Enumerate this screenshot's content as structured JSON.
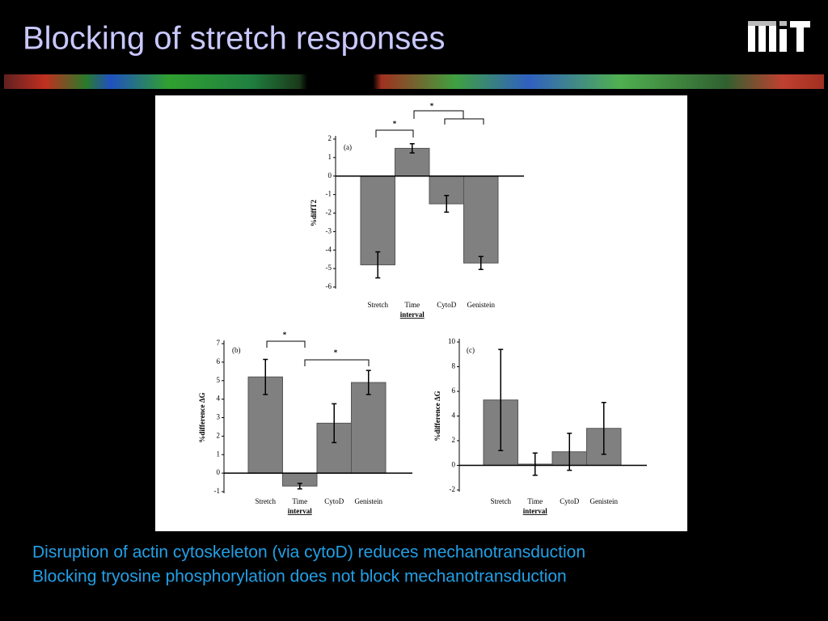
{
  "title": "Blocking of stretch responses",
  "lines": [
    "Disruption of actin cytoskeleton (via cytoD) reduces mechanotransduction",
    "Blocking tryosine phosphorylation does not block mechanotransduction"
  ],
  "chart_data": [
    {
      "type": "bar",
      "panel": "(a)",
      "ylabel": "%diffT2",
      "xlabel": "interval",
      "categories": [
        "Stretch",
        "Time",
        "CytoD",
        "Genistein"
      ],
      "values": [
        -4.8,
        1.5,
        -1.5,
        -4.7
      ],
      "errors": [
        0.7,
        0.25,
        0.45,
        0.35
      ],
      "color": "#808080",
      "ylim": [
        -6,
        2
      ],
      "yticks": [
        2,
        1,
        0,
        -1,
        -2,
        -3,
        -4,
        -5,
        -6
      ],
      "grid": false,
      "annotations": [
        "*",
        "*"
      ]
    },
    {
      "type": "bar",
      "panel": "(b)",
      "ylabel": "%difference ΔG",
      "xlabel": "interval",
      "categories": [
        "Stretch",
        "Time",
        "CytoD",
        "Genistein"
      ],
      "values": [
        5.2,
        -0.7,
        2.7,
        4.9
      ],
      "errors": [
        0.95,
        0.15,
        1.05,
        0.65
      ],
      "color": "#808080",
      "ylim": [
        -1,
        7
      ],
      "yticks": [
        7,
        6,
        5,
        4,
        3,
        2,
        1,
        0,
        -1
      ],
      "grid": false,
      "annotations": [
        "*",
        "*"
      ]
    },
    {
      "type": "bar",
      "panel": "(c)",
      "ylabel": "%difference ΔG",
      "xlabel": "interval",
      "categories": [
        "Stretch",
        "Time",
        "CytoD",
        "Genistein"
      ],
      "values": [
        5.3,
        0.1,
        1.1,
        3.0
      ],
      "errors": [
        4.1,
        0.9,
        1.5,
        2.1
      ],
      "color": "#808080",
      "ylim": [
        -2,
        10
      ],
      "yticks": [
        10,
        8,
        6,
        4,
        2,
        0,
        -2
      ],
      "grid": false
    }
  ]
}
